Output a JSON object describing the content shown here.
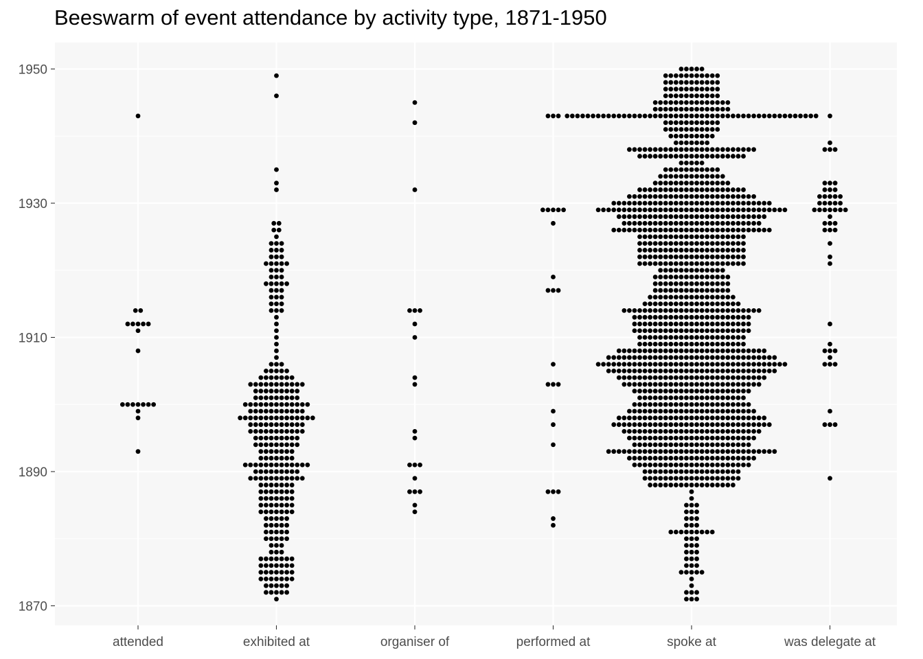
{
  "chart_data": {
    "type": "scatter",
    "subtype": "beeswarm",
    "title": "Beeswarm of event attendance by activity type, 1871-1950",
    "xlabel": "",
    "ylabel": "",
    "categories": [
      "attended",
      "exhibited at",
      "organiser of",
      "performed at",
      "spoke at",
      "was delegate at"
    ],
    "ylim": [
      1866,
      1953
    ],
    "yticks": [
      1870,
      1890,
      1910,
      1930,
      1950
    ],
    "grid": true,
    "legend": "none",
    "colors": {
      "background": "#f7f7f7",
      "grid": "#ffffff",
      "point": "#000000",
      "text": "#4d4d4d"
    },
    "series": [
      {
        "category": "attended",
        "points": [
          [
            1943,
            1
          ],
          [
            1914,
            2
          ],
          [
            1912,
            5
          ],
          [
            1911,
            1
          ],
          [
            1908,
            1
          ],
          [
            1900,
            7
          ],
          [
            1899,
            1
          ],
          [
            1898,
            1
          ],
          [
            1893,
            1
          ]
        ]
      },
      {
        "category": "exhibited at",
        "points": [
          [
            1949,
            1
          ],
          [
            1946,
            1
          ],
          [
            1935,
            1
          ],
          [
            1933,
            1
          ],
          [
            1932,
            1
          ],
          [
            1927,
            2
          ],
          [
            1926,
            2
          ],
          [
            1925,
            1
          ],
          [
            1924,
            3
          ],
          [
            1923,
            3
          ],
          [
            1922,
            3
          ],
          [
            1921,
            5
          ],
          [
            1920,
            3
          ],
          [
            1919,
            3
          ],
          [
            1918,
            5
          ],
          [
            1917,
            3
          ],
          [
            1916,
            3
          ],
          [
            1915,
            3
          ],
          [
            1914,
            3
          ],
          [
            1913,
            1
          ],
          [
            1912,
            1
          ],
          [
            1911,
            1
          ],
          [
            1910,
            1
          ],
          [
            1909,
            1
          ],
          [
            1908,
            1
          ],
          [
            1907,
            1
          ],
          [
            1906,
            3
          ],
          [
            1905,
            5
          ],
          [
            1904,
            7
          ],
          [
            1903,
            11
          ],
          [
            1902,
            9
          ],
          [
            1901,
            9
          ],
          [
            1900,
            13
          ],
          [
            1899,
            11
          ],
          [
            1898,
            15
          ],
          [
            1897,
            11
          ],
          [
            1896,
            11
          ],
          [
            1895,
            9
          ],
          [
            1894,
            9
          ],
          [
            1893,
            7
          ],
          [
            1892,
            7
          ],
          [
            1891,
            13
          ],
          [
            1890,
            9
          ],
          [
            1889,
            11
          ],
          [
            1888,
            7
          ],
          [
            1887,
            7
          ],
          [
            1886,
            7
          ],
          [
            1885,
            7
          ],
          [
            1884,
            7
          ],
          [
            1883,
            5
          ],
          [
            1882,
            5
          ],
          [
            1881,
            5
          ],
          [
            1880,
            5
          ],
          [
            1879,
            3
          ],
          [
            1878,
            3
          ],
          [
            1877,
            7
          ],
          [
            1876,
            7
          ],
          [
            1875,
            7
          ],
          [
            1874,
            7
          ],
          [
            1873,
            5
          ],
          [
            1872,
            5
          ],
          [
            1871,
            1
          ]
        ]
      },
      {
        "category": "organiser of",
        "points": [
          [
            1945,
            1
          ],
          [
            1942,
            1
          ],
          [
            1932,
            1
          ],
          [
            1914,
            3
          ],
          [
            1912,
            1
          ],
          [
            1910,
            1
          ],
          [
            1904,
            1
          ],
          [
            1903,
            1
          ],
          [
            1896,
            1
          ],
          [
            1895,
            1
          ],
          [
            1891,
            3
          ],
          [
            1889,
            1
          ],
          [
            1887,
            3
          ],
          [
            1885,
            1
          ],
          [
            1884,
            1
          ]
        ]
      },
      {
        "category": "performed at",
        "points": [
          [
            1943,
            3
          ],
          [
            1929,
            5
          ],
          [
            1927,
            1
          ],
          [
            1919,
            1
          ],
          [
            1917,
            3
          ],
          [
            1906,
            1
          ],
          [
            1903,
            3
          ],
          [
            1899,
            1
          ],
          [
            1897,
            1
          ],
          [
            1894,
            1
          ],
          [
            1887,
            3
          ],
          [
            1883,
            1
          ],
          [
            1882,
            1
          ]
        ]
      },
      {
        "category": "spoke at",
        "points": [
          [
            1950,
            5
          ],
          [
            1949,
            11
          ],
          [
            1948,
            11
          ],
          [
            1947,
            11
          ],
          [
            1946,
            11
          ],
          [
            1945,
            15
          ],
          [
            1944,
            15
          ],
          [
            1943,
            49
          ],
          [
            1942,
            11
          ],
          [
            1941,
            11
          ],
          [
            1940,
            9
          ],
          [
            1939,
            7
          ],
          [
            1938,
            25
          ],
          [
            1937,
            21
          ],
          [
            1936,
            5
          ],
          [
            1935,
            11
          ],
          [
            1934,
            13
          ],
          [
            1933,
            15
          ],
          [
            1932,
            21
          ],
          [
            1931,
            25
          ],
          [
            1930,
            31
          ],
          [
            1929,
            37
          ],
          [
            1928,
            29
          ],
          [
            1927,
            27
          ],
          [
            1926,
            31
          ],
          [
            1925,
            21
          ],
          [
            1924,
            21
          ],
          [
            1923,
            21
          ],
          [
            1922,
            21
          ],
          [
            1921,
            21
          ],
          [
            1920,
            13
          ],
          [
            1919,
            15
          ],
          [
            1918,
            15
          ],
          [
            1917,
            15
          ],
          [
            1916,
            17
          ],
          [
            1915,
            19
          ],
          [
            1914,
            27
          ],
          [
            1913,
            23
          ],
          [
            1912,
            23
          ],
          [
            1911,
            23
          ],
          [
            1910,
            21
          ],
          [
            1909,
            21
          ],
          [
            1908,
            29
          ],
          [
            1907,
            33
          ],
          [
            1906,
            37
          ],
          [
            1905,
            33
          ],
          [
            1904,
            29
          ],
          [
            1903,
            27
          ],
          [
            1902,
            23
          ],
          [
            1901,
            21
          ],
          [
            1900,
            23
          ],
          [
            1899,
            25
          ],
          [
            1898,
            29
          ],
          [
            1897,
            31
          ],
          [
            1896,
            27
          ],
          [
            1895,
            25
          ],
          [
            1894,
            23
          ],
          [
            1893,
            33
          ],
          [
            1892,
            25
          ],
          [
            1891,
            23
          ],
          [
            1890,
            19
          ],
          [
            1889,
            19
          ],
          [
            1888,
            17
          ],
          [
            1887,
            1
          ],
          [
            1886,
            1
          ],
          [
            1885,
            3
          ],
          [
            1884,
            3
          ],
          [
            1883,
            3
          ],
          [
            1882,
            3
          ],
          [
            1881,
            9
          ],
          [
            1880,
            3
          ],
          [
            1879,
            3
          ],
          [
            1878,
            3
          ],
          [
            1877,
            3
          ],
          [
            1876,
            3
          ],
          [
            1875,
            5
          ],
          [
            1874,
            1
          ],
          [
            1873,
            1
          ],
          [
            1872,
            3
          ],
          [
            1871,
            3
          ]
        ]
      },
      {
        "category": "was delegate at",
        "points": [
          [
            1943,
            1
          ],
          [
            1939,
            1
          ],
          [
            1938,
            3
          ],
          [
            1933,
            3
          ],
          [
            1932,
            3
          ],
          [
            1931,
            5
          ],
          [
            1930,
            5
          ],
          [
            1929,
            7
          ],
          [
            1928,
            1
          ],
          [
            1927,
            3
          ],
          [
            1926,
            3
          ],
          [
            1924,
            1
          ],
          [
            1922,
            1
          ],
          [
            1921,
            1
          ],
          [
            1912,
            1
          ],
          [
            1909,
            1
          ],
          [
            1908,
            3
          ],
          [
            1907,
            1
          ],
          [
            1906,
            3
          ],
          [
            1899,
            1
          ],
          [
            1897,
            3
          ],
          [
            1889,
            1
          ]
        ]
      }
    ]
  }
}
